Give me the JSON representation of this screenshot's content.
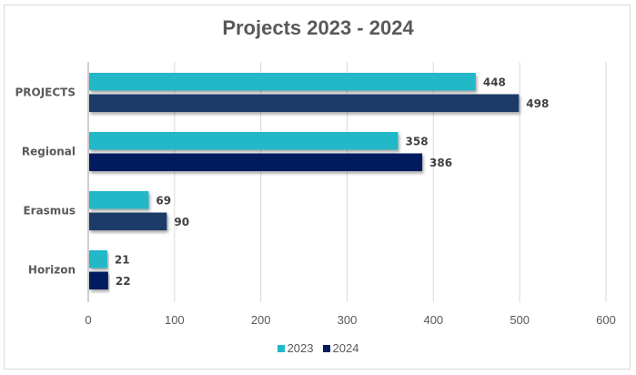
{
  "chart_data": {
    "type": "bar",
    "orientation": "horizontal",
    "title": "Projects 2023 - 2024",
    "categories": [
      "PROJECTS",
      "Regional",
      "Erasmus",
      "Horizon"
    ],
    "series": [
      {
        "name": "2023",
        "color": "#23b8c8",
        "values": [
          448,
          358,
          69,
          21
        ],
        "bar_colors": [
          "#23b8c8",
          "#23b8c8",
          "#23b8c8",
          "#23b8c8"
        ]
      },
      {
        "name": "2024",
        "color": "#001d5e",
        "values": [
          498,
          386,
          90,
          22
        ],
        "bar_colors": [
          "#1f3a68",
          "#001d5e",
          "#1f3a68",
          "#001d5e"
        ]
      }
    ],
    "xlim": [
      0,
      600
    ],
    "xticks": [
      "0",
      "100",
      "200",
      "300",
      "400",
      "500",
      "600"
    ],
    "xtick_values": [
      0,
      100,
      200,
      300,
      400,
      500,
      600
    ],
    "grid": true,
    "legend": "bottom",
    "xlabel": "",
    "ylabel": ""
  }
}
